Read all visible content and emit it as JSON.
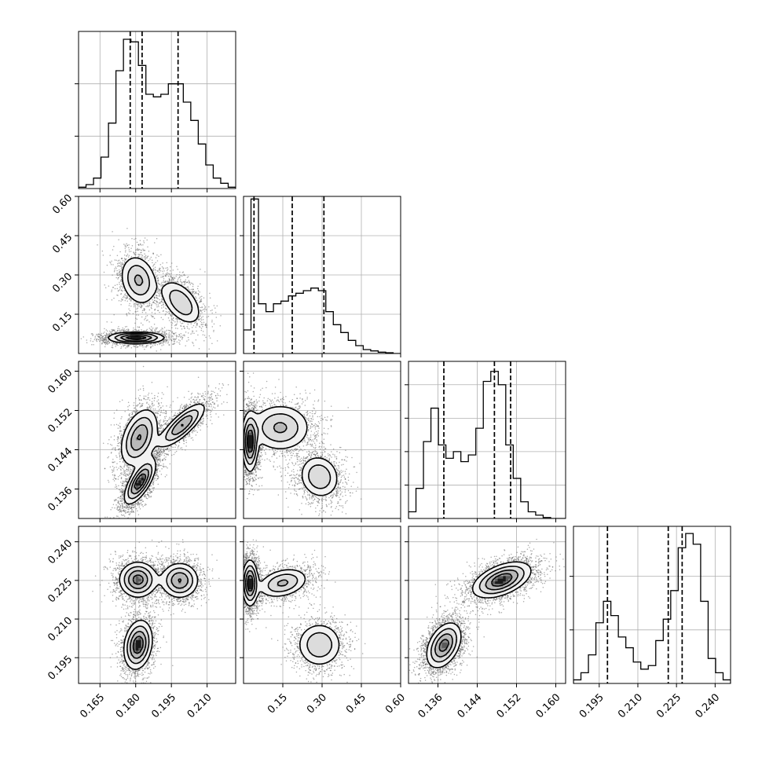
{
  "chart_data": {
    "type": "corner",
    "parameters": [
      {
        "range": [
          0.156,
          0.222
        ],
        "ticks": [
          0.165,
          0.18,
          0.195,
          0.21
        ],
        "tick_labels": [
          "0.165",
          "0.180",
          "0.195",
          "0.210"
        ]
      },
      {
        "range": [
          0.0,
          0.6
        ],
        "ticks": [
          0.15,
          0.3,
          0.45,
          0.6
        ],
        "tick_labels": [
          "0.15",
          "0.30",
          "0.45",
          "0.60"
        ]
      },
      {
        "range": [
          0.13,
          0.162
        ],
        "ticks": [
          0.136,
          0.144,
          0.152,
          0.16
        ],
        "tick_labels": [
          "0.136",
          "0.144",
          "0.152",
          "0.160"
        ]
      },
      {
        "range": [
          0.185,
          0.246
        ],
        "ticks": [
          0.195,
          0.21,
          0.225,
          0.24
        ],
        "tick_labels": [
          "0.195",
          "0.210",
          "0.225",
          "0.240"
        ]
      }
    ],
    "histograms": [
      {
        "counts": [
          0.5,
          1.5,
          4,
          12,
          25,
          45,
          57,
          56,
          47,
          36,
          35,
          36,
          40,
          40,
          33,
          26,
          17,
          9,
          4,
          2,
          0.5
        ],
        "ylim": [
          0,
          60
        ],
        "ytick_values": [
          20,
          40
        ],
        "quantiles": [
          0.1777,
          0.1827,
          0.1978
        ]
      },
      {
        "counts": [
          9,
          59,
          19,
          16,
          19,
          20,
          22,
          23,
          24,
          25,
          24,
          16,
          11,
          8,
          5,
          3,
          1.5,
          1,
          0.5,
          0.3,
          0
        ],
        "ylim": [
          0,
          60
        ],
        "ytick_values": [
          15,
          30,
          45
        ],
        "quantiles": [
          0.04,
          0.186,
          0.307
        ]
      },
      {
        "counts": [
          2,
          9,
          23,
          33,
          22,
          18,
          20,
          17,
          19,
          27,
          41,
          44,
          40,
          22,
          12,
          5,
          2,
          1,
          0.3,
          0,
          0
        ],
        "ylim": [
          0,
          47
        ],
        "ytick_values": [
          10,
          20,
          30,
          40
        ],
        "quantiles": [
          0.1372,
          0.1475,
          0.1508
        ]
      },
      {
        "counts": [
          1,
          3,
          8,
          17,
          23,
          19,
          13,
          10,
          6,
          4,
          5,
          12,
          18,
          26,
          38,
          42,
          39,
          23,
          7,
          3,
          1
        ],
        "ylim": [
          0,
          44
        ],
        "ytick_values": [
          15,
          30
        ],
        "quantiles": [
          0.1982,
          0.2218,
          0.2272
        ]
      }
    ],
    "density_panels": [
      {
        "row": 1,
        "col": 0,
        "modes": [
          {
            "cx": 0.1812,
            "cy": 0.28,
            "sx": 0.004,
            "sy": 0.05,
            "rho": -0.2,
            "w": 0.6
          },
          {
            "cx": 0.199,
            "cy": 0.195,
            "sx": 0.0045,
            "sy": 0.045,
            "rho": -0.5,
            "w": 0.55
          },
          {
            "cx": 0.1802,
            "cy": 0.06,
            "sx": 0.006,
            "sy": 0.011,
            "rho": 0.0,
            "w": 1.0
          }
        ]
      },
      {
        "row": 2,
        "col": 0,
        "modes": [
          {
            "cx": 0.1815,
            "cy": 0.1465,
            "sx": 0.004,
            "sy": 0.003,
            "rho": 0.4,
            "w": 0.8
          },
          {
            "cx": 0.1995,
            "cy": 0.149,
            "sx": 0.005,
            "sy": 0.0023,
            "rho": 0.8,
            "w": 0.8
          },
          {
            "cx": 0.1818,
            "cy": 0.1375,
            "sx": 0.0033,
            "sy": 0.0023,
            "rho": 0.7,
            "w": 1.0
          }
        ]
      },
      {
        "row": 2,
        "col": 1,
        "modes": [
          {
            "cx": 0.025,
            "cy": 0.1455,
            "sx": 0.015,
            "sy": 0.003,
            "rho": 0.0,
            "w": 1.0
          },
          {
            "cx": 0.14,
            "cy": 0.1485,
            "sx": 0.06,
            "sy": 0.0025,
            "rho": 0.0,
            "w": 0.6
          },
          {
            "cx": 0.29,
            "cy": 0.1385,
            "sx": 0.04,
            "sy": 0.0023,
            "rho": -0.1,
            "w": 0.55
          }
        ]
      },
      {
        "row": 3,
        "col": 0,
        "modes": [
          {
            "cx": 0.181,
            "cy": 0.2253,
            "sx": 0.004,
            "sy": 0.0035,
            "rho": 0.0,
            "w": 0.9
          },
          {
            "cx": 0.1985,
            "cy": 0.225,
            "sx": 0.004,
            "sy": 0.0035,
            "rho": 0.0,
            "w": 0.8
          },
          {
            "cx": 0.181,
            "cy": 0.2,
            "sx": 0.003,
            "sy": 0.0048,
            "rho": 0.2,
            "w": 1.0
          }
        ]
      },
      {
        "row": 3,
        "col": 1,
        "modes": [
          {
            "cx": 0.025,
            "cy": 0.224,
            "sx": 0.015,
            "sy": 0.0045,
            "rho": 0.0,
            "w": 1.0
          },
          {
            "cx": 0.15,
            "cy": 0.224,
            "sx": 0.05,
            "sy": 0.003,
            "rho": 0.3,
            "w": 0.6
          },
          {
            "cx": 0.29,
            "cy": 0.2,
            "sx": 0.045,
            "sy": 0.0045,
            "rho": 0.0,
            "w": 0.55
          }
        ]
      },
      {
        "row": 3,
        "col": 2,
        "modes": [
          {
            "cx": 0.149,
            "cy": 0.2252,
            "sx": 0.003,
            "sy": 0.0035,
            "rho": 0.5,
            "w": 1.0
          },
          {
            "cx": 0.1372,
            "cy": 0.1998,
            "sx": 0.0018,
            "sy": 0.0045,
            "rho": 0.4,
            "w": 0.9
          }
        ]
      }
    ],
    "contour_levels": [
      0.14,
      0.32,
      0.55,
      0.78
    ],
    "grid": true,
    "title": "",
    "legend": "none",
    "colors": {
      "contour": "#000000",
      "points": "#555555",
      "background": "#ffffff"
    }
  }
}
